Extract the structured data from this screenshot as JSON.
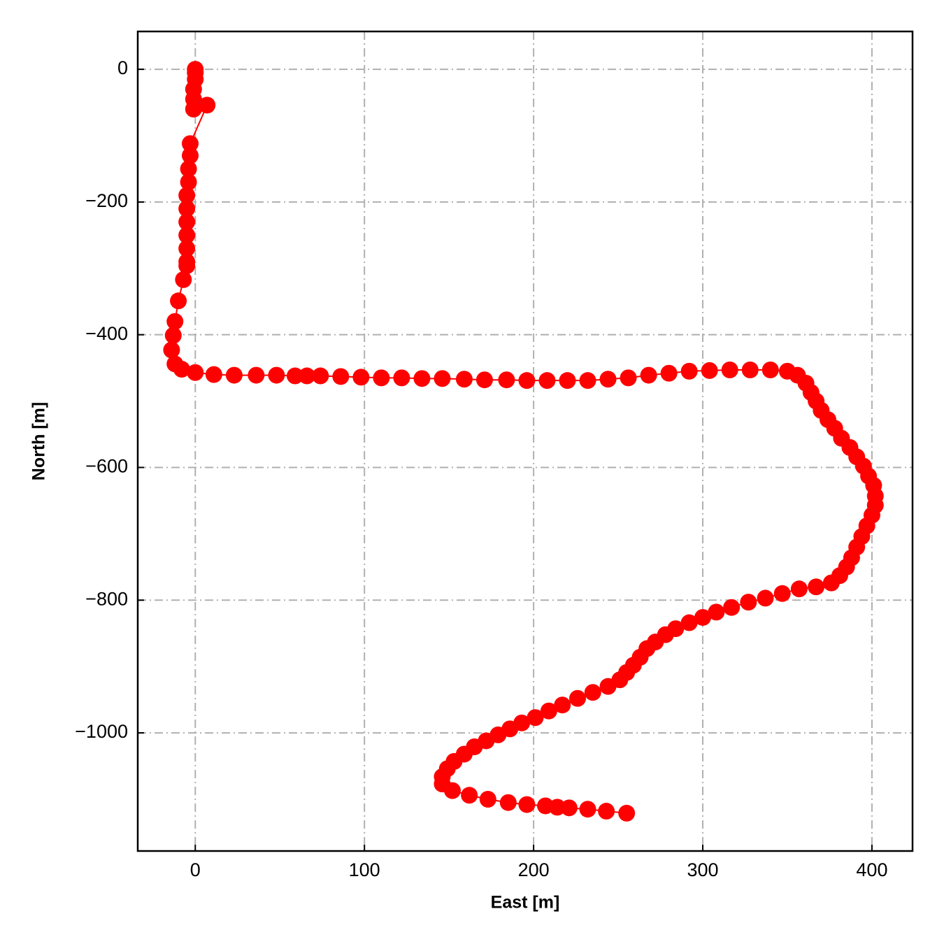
{
  "chart_data": {
    "type": "line",
    "marker": true,
    "color": "#ff0000",
    "grid": true,
    "xlabel": "East [m]",
    "ylabel": "North [m]",
    "xlim": [
      -34,
      424
    ],
    "ylim": [
      -1178,
      57
    ],
    "xticks": [
      0,
      100,
      200,
      300,
      400
    ],
    "yticks": [
      0,
      {
        "value": -200,
        "label": "−200"
      },
      {
        "value": -400,
        "label": "−400"
      },
      {
        "value": -600,
        "label": "−600"
      },
      {
        "value": -800,
        "label": "−800"
      },
      {
        "value": -1000,
        "label": "−1000"
      }
    ],
    "x": [
      0,
      0,
      0,
      -1,
      -1,
      -1,
      7,
      -3,
      -3,
      -4,
      -4,
      -5,
      -5,
      -5,
      -5,
      -5,
      -5,
      -5,
      -7,
      -10,
      -12,
      -13,
      -14,
      -12,
      -8,
      0,
      11,
      23,
      36,
      48,
      59,
      66,
      74,
      86,
      98,
      110,
      122,
      134,
      146,
      159,
      171,
      184,
      196,
      208,
      220,
      232,
      244,
      256,
      268,
      280,
      292,
      304,
      316,
      328,
      340,
      350,
      356,
      361,
      364,
      367,
      370,
      374,
      378,
      382,
      387,
      391,
      395,
      398,
      401,
      402,
      402,
      400,
      397,
      394,
      391,
      388,
      385,
      381,
      376,
      367,
      357,
      347,
      337,
      327,
      317,
      308,
      300,
      292,
      284,
      278,
      272,
      267,
      263,
      259,
      255,
      251,
      244,
      235,
      226,
      217,
      209,
      201,
      193,
      186,
      179,
      172,
      165,
      159,
      153,
      149,
      146,
      146,
      152,
      162,
      173,
      185,
      196,
      207,
      214,
      221,
      232,
      243,
      255
    ],
    "values": [
      0,
      -5,
      -15,
      -30,
      -45,
      -60,
      -54,
      -112,
      -130,
      -150,
      -170,
      -190,
      -210,
      -230,
      -250,
      -270,
      -290,
      -296,
      -317,
      -349,
      -380,
      -401,
      -423,
      -444,
      -452,
      -457,
      -460,
      -461,
      -461,
      -461,
      -462,
      -462,
      -462,
      -463,
      -464,
      -465,
      -465,
      -466,
      -466,
      -467,
      -468,
      -468,
      -469,
      -469,
      -469,
      -469,
      -467,
      -465,
      -461,
      -458,
      -455,
      -454,
      -453,
      -453,
      -453,
      -455,
      -461,
      -473,
      -487,
      -500,
      -514,
      -528,
      -541,
      -556,
      -570,
      -584,
      -598,
      -613,
      -627,
      -643,
      -657,
      -672,
      -688,
      -704,
      -720,
      -736,
      -750,
      -763,
      -774,
      -780,
      -783,
      -790,
      -797,
      -803,
      -811,
      -818,
      -826,
      -834,
      -843,
      -852,
      -863,
      -873,
      -886,
      -898,
      -909,
      -920,
      -930,
      -939,
      -948,
      -958,
      -967,
      -977,
      -985,
      -994,
      -1003,
      -1012,
      -1021,
      -1032,
      -1043,
      -1054,
      -1066,
      -1077,
      -1087,
      -1094,
      -1100,
      -1105,
      -1108,
      -1110,
      -1112,
      -1113,
      -1115,
      -1118,
      -1121
    ]
  }
}
